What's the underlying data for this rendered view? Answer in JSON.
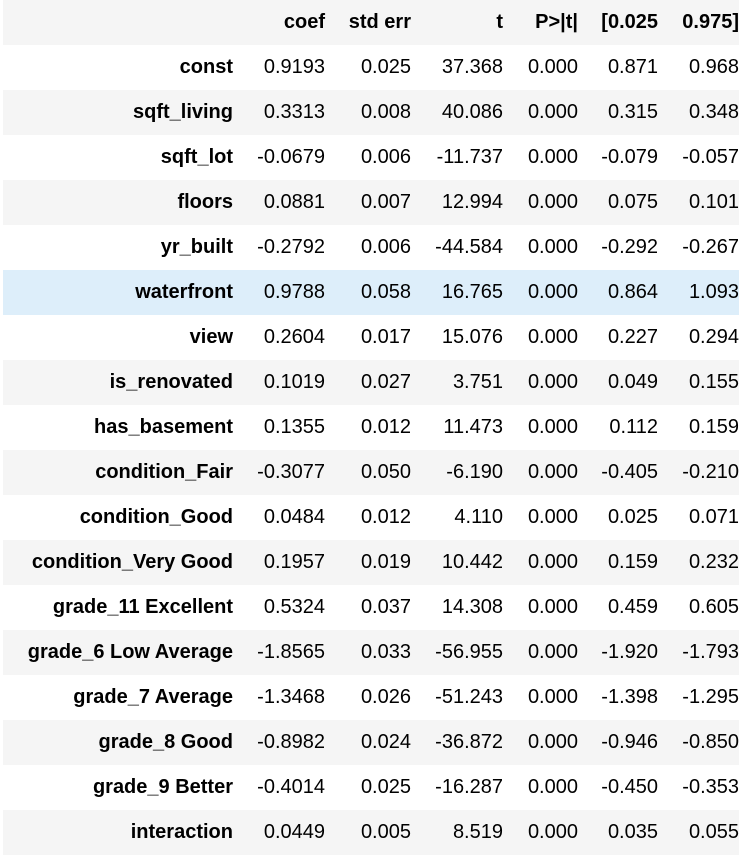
{
  "table": {
    "columns": [
      "",
      "coef",
      "std err",
      "t",
      "P>|t|",
      "[0.025",
      "0.975]"
    ],
    "highlighted_row": "waterfront",
    "rows": [
      {
        "label": "const",
        "values": [
          "0.9193",
          "0.025",
          "37.368",
          "0.000",
          "0.871",
          "0.968"
        ]
      },
      {
        "label": "sqft_living",
        "values": [
          "0.3313",
          "0.008",
          "40.086",
          "0.000",
          "0.315",
          "0.348"
        ]
      },
      {
        "label": "sqft_lot",
        "values": [
          "-0.0679",
          "0.006",
          "-11.737",
          "0.000",
          "-0.079",
          "-0.057"
        ]
      },
      {
        "label": "floors",
        "values": [
          "0.0881",
          "0.007",
          "12.994",
          "0.000",
          "0.075",
          "0.101"
        ]
      },
      {
        "label": "yr_built",
        "values": [
          "-0.2792",
          "0.006",
          "-44.584",
          "0.000",
          "-0.292",
          "-0.267"
        ]
      },
      {
        "label": "waterfront",
        "values": [
          "0.9788",
          "0.058",
          "16.765",
          "0.000",
          "0.864",
          "1.093"
        ]
      },
      {
        "label": "view",
        "values": [
          "0.2604",
          "0.017",
          "15.076",
          "0.000",
          "0.227",
          "0.294"
        ]
      },
      {
        "label": "is_renovated",
        "values": [
          "0.1019",
          "0.027",
          "3.751",
          "0.000",
          "0.049",
          "0.155"
        ]
      },
      {
        "label": "has_basement",
        "values": [
          "0.1355",
          "0.012",
          "11.473",
          "0.000",
          "0.112",
          "0.159"
        ]
      },
      {
        "label": "condition_Fair",
        "values": [
          "-0.3077",
          "0.050",
          "-6.190",
          "0.000",
          "-0.405",
          "-0.210"
        ]
      },
      {
        "label": "condition_Good",
        "values": [
          "0.0484",
          "0.012",
          "4.110",
          "0.000",
          "0.025",
          "0.071"
        ]
      },
      {
        "label": "condition_Very Good",
        "values": [
          "0.1957",
          "0.019",
          "10.442",
          "0.000",
          "0.159",
          "0.232"
        ]
      },
      {
        "label": "grade_11 Excellent",
        "values": [
          "0.5324",
          "0.037",
          "14.308",
          "0.000",
          "0.459",
          "0.605"
        ]
      },
      {
        "label": "grade_6 Low Average",
        "values": [
          "-1.8565",
          "0.033",
          "-56.955",
          "0.000",
          "-1.920",
          "-1.793"
        ]
      },
      {
        "label": "grade_7 Average",
        "values": [
          "-1.3468",
          "0.026",
          "-51.243",
          "0.000",
          "-1.398",
          "-1.295"
        ]
      },
      {
        "label": "grade_8 Good",
        "values": [
          "-0.8982",
          "0.024",
          "-36.872",
          "0.000",
          "-0.946",
          "-0.850"
        ]
      },
      {
        "label": "grade_9 Better",
        "values": [
          "-0.4014",
          "0.025",
          "-16.287",
          "0.000",
          "-0.450",
          "-0.353"
        ]
      },
      {
        "label": "interaction",
        "values": [
          "0.0449",
          "0.005",
          "8.519",
          "0.000",
          "0.035",
          "0.055"
        ]
      }
    ]
  },
  "colors": {
    "stripe": "#f5f5f5",
    "highlight": "#ddeefa",
    "background": "#ffffff"
  }
}
